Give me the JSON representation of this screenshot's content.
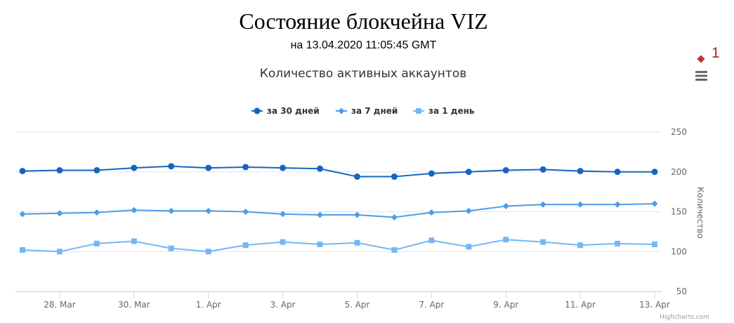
{
  "page": {
    "title": "Состояние блокчейна VIZ",
    "subtitle": "на 13.04.2020 11:05:45 GMT",
    "badge": "1"
  },
  "menu": {
    "icon": "hamburger-menu-icon"
  },
  "credits": "Highcharts.com",
  "colors": {
    "s1": "#1565c0",
    "s2": "#4b9de8",
    "s3": "#74b7f7",
    "grid": "#e6e6e6",
    "axis": "#ccd6eb",
    "text": "#333333",
    "tick": "#666666"
  },
  "chart_data": {
    "type": "line",
    "title": "Количество активных аккаунтов",
    "ylabel": "Количество",
    "ylim": [
      50,
      250
    ],
    "yticks": [
      50,
      100,
      150,
      200,
      250
    ],
    "y_axis_position": "right",
    "grid": true,
    "legend_position": "top-center",
    "x": [
      "2020-03-27",
      "2020-03-28",
      "2020-03-29",
      "2020-03-30",
      "2020-03-31",
      "2020-04-01",
      "2020-04-02",
      "2020-04-03",
      "2020-04-04",
      "2020-04-05",
      "2020-04-06",
      "2020-04-07",
      "2020-04-08",
      "2020-04-09",
      "2020-04-10",
      "2020-04-11",
      "2020-04-12",
      "2020-04-13"
    ],
    "xticks": [
      {
        "date": "2020-03-28",
        "label": "28. Mar"
      },
      {
        "date": "2020-03-30",
        "label": "30. Mar"
      },
      {
        "date": "2020-04-01",
        "label": "1. Apr"
      },
      {
        "date": "2020-04-03",
        "label": "3. Apr"
      },
      {
        "date": "2020-04-05",
        "label": "5. Apr"
      },
      {
        "date": "2020-04-07",
        "label": "7. Apr"
      },
      {
        "date": "2020-04-09",
        "label": "9. Apr"
      },
      {
        "date": "2020-04-11",
        "label": "11. Apr"
      },
      {
        "date": "2020-04-13",
        "label": "13. Apr"
      }
    ],
    "series": [
      {
        "name": "за 30 дней",
        "marker": "circle",
        "color": "#1565c0",
        "values": [
          201,
          202,
          202,
          205,
          207,
          205,
          206,
          205,
          204,
          194,
          194,
          198,
          200,
          202,
          203,
          201,
          200,
          200
        ]
      },
      {
        "name": "за 7 дней",
        "marker": "diamond",
        "color": "#4b9de8",
        "values": [
          147,
          148,
          149,
          152,
          151,
          151,
          150,
          147,
          146,
          146,
          143,
          149,
          151,
          157,
          159,
          159,
          159,
          160
        ]
      },
      {
        "name": "за 1 день",
        "marker": "square",
        "color": "#74b7f7",
        "values": [
          102,
          100,
          110,
          113,
          104,
          100,
          108,
          112,
          109,
          111,
          102,
          114,
          106,
          115,
          112,
          108,
          110,
          109
        ]
      }
    ]
  }
}
